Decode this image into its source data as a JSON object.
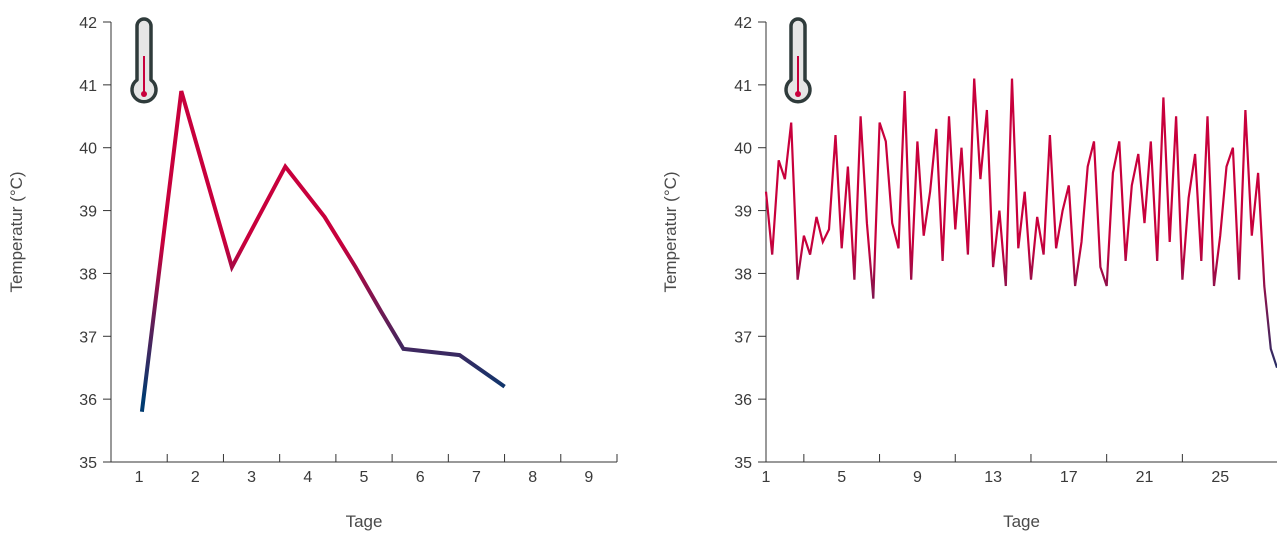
{
  "colors": {
    "low": "#003a70",
    "high": "#c8003c",
    "axis": "#333333",
    "thermo_outline": "#2f3b3b",
    "thermo_fill": "#e6e6e6"
  },
  "icons": [
    "thermometer-icon"
  ],
  "chart_data": [
    {
      "type": "line",
      "xlabel": "Tage",
      "ylabel": "Temperatur (°C)",
      "ylim": [
        35,
        42
      ],
      "y_ticks": [
        "35",
        "36",
        "37",
        "38",
        "39",
        "40",
        "41",
        "42"
      ],
      "x_ticks": [
        "1",
        "2",
        "3",
        "4",
        "5",
        "6",
        "7",
        "8",
        "9"
      ],
      "xlim": [
        0.5,
        9.5
      ],
      "grid": false,
      "series": [
        {
          "x": [
            1.05,
            1.75,
            2.65,
            3.6,
            4.3,
            4.85,
            5.3,
            5.7,
            6.7,
            7.5
          ],
          "values": [
            35.8,
            40.9,
            38.1,
            39.7,
            38.9,
            38.1,
            37.4,
            36.8,
            36.7,
            36.2
          ]
        }
      ]
    },
    {
      "type": "line",
      "xlabel": "Tage",
      "ylabel": "Temperatur (°C)",
      "ylim": [
        35,
        42
      ],
      "y_ticks": [
        "35",
        "36",
        "37",
        "38",
        "39",
        "40",
        "41",
        "42"
      ],
      "x_ticks": [
        "1",
        "5",
        "9",
        "13",
        "17",
        "21",
        "25"
      ],
      "xlim": [
        1,
        28
      ],
      "grid": false,
      "series": [
        {
          "x": [
            1,
            1.33,
            1.67,
            2,
            2.33,
            2.67,
            3,
            3.33,
            3.67,
            4,
            4.33,
            4.67,
            5,
            5.33,
            5.67,
            6,
            6.33,
            6.67,
            7,
            7.33,
            7.67,
            8,
            8.33,
            8.67,
            9,
            9.33,
            9.67,
            10,
            10.33,
            10.67,
            11,
            11.33,
            11.67,
            12,
            12.33,
            12.67,
            13,
            13.33,
            13.67,
            14,
            14.33,
            14.67,
            15,
            15.33,
            15.67,
            16,
            16.33,
            16.67,
            17,
            17.33,
            17.67,
            18,
            18.33,
            18.67,
            19,
            19.33,
            19.67,
            20,
            20.33,
            20.67,
            21,
            21.33,
            21.67,
            22,
            22.33,
            22.67,
            23,
            23.33,
            23.67,
            24,
            24.33,
            24.67,
            25,
            25.33,
            25.67,
            26,
            26.33,
            26.67,
            27,
            27.33,
            27.67,
            28
          ],
          "values": [
            39.3,
            38.3,
            39.8,
            39.5,
            40.4,
            37.9,
            38.6,
            38.3,
            38.9,
            38.5,
            38.7,
            40.2,
            38.4,
            39.7,
            37.9,
            40.5,
            38.8,
            37.6,
            40.4,
            40.1,
            38.8,
            38.4,
            40.9,
            37.9,
            40.1,
            38.6,
            39.3,
            40.3,
            38.2,
            40.5,
            38.7,
            40.0,
            38.3,
            41.1,
            39.5,
            40.6,
            38.1,
            39.0,
            37.8,
            41.1,
            38.4,
            39.3,
            37.9,
            38.9,
            38.3,
            40.2,
            38.4,
            39.0,
            39.4,
            37.8,
            38.5,
            39.7,
            40.1,
            38.1,
            37.8,
            39.6,
            40.1,
            38.2,
            39.4,
            39.9,
            38.8,
            40.1,
            38.2,
            40.8,
            38.5,
            40.5,
            37.9,
            39.2,
            39.9,
            38.2,
            40.5,
            37.8,
            38.6,
            39.7,
            40.0,
            37.9,
            40.6,
            38.6,
            39.6,
            37.8,
            36.8,
            36.5
          ]
        }
      ]
    }
  ]
}
